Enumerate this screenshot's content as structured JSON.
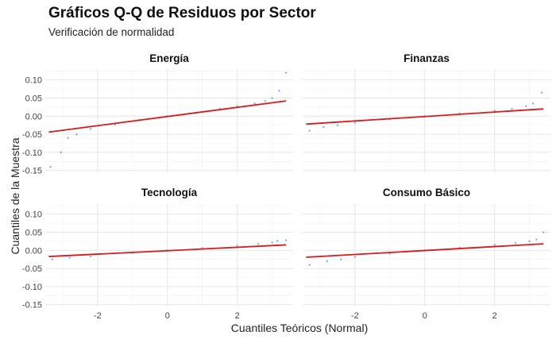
{
  "chart_data": {
    "type": "scatter",
    "title": "Gráficos Q-Q de Residuos por Sector",
    "subtitle": "Verificación de normalidad",
    "xlabel": "Cuantiles Teóricos (Normal)",
    "ylabel": "Cuantiles de la Muestra",
    "xlim": [
      -3.5,
      3.6
    ],
    "ylim": [
      -0.155,
      0.13
    ],
    "x_ticks": [
      -2,
      0,
      2
    ],
    "y_ticks": [
      0.1,
      0.05,
      0.0,
      -0.05,
      -0.1,
      -0.15
    ],
    "x_tick_labels": [
      "-2",
      "0",
      "2"
    ],
    "y_tick_labels": [
      "0.10",
      "0.05",
      "0.00",
      "-0.05",
      "-0.10",
      "-0.15"
    ],
    "grid": true,
    "point_color": "#6a8fc6",
    "line_color": "#d7191c",
    "panels": [
      {
        "name": "Energía",
        "points": [
          [
            -3.35,
            -0.14
          ],
          [
            -3.05,
            -0.1
          ],
          [
            -2.85,
            -0.06
          ],
          [
            -2.6,
            -0.05
          ],
          [
            -2.2,
            -0.035
          ],
          [
            -1.5,
            -0.023
          ],
          [
            -0.8,
            -0.011
          ],
          [
            0,
            0
          ],
          [
            0.8,
            0.009
          ],
          [
            1.5,
            0.02
          ],
          [
            2.0,
            0.027
          ],
          [
            2.5,
            0.035
          ],
          [
            2.8,
            0.042
          ],
          [
            3.0,
            0.05
          ],
          [
            3.2,
            0.07
          ],
          [
            3.4,
            0.12
          ]
        ],
        "line": [
          [
            -3.4,
            -0.044
          ],
          [
            3.4,
            0.042
          ]
        ]
      },
      {
        "name": "Finanzas",
        "points": [
          [
            -3.3,
            -0.04
          ],
          [
            -2.9,
            -0.03
          ],
          [
            -2.5,
            -0.025
          ],
          [
            -2.0,
            -0.018
          ],
          [
            -1.0,
            -0.008
          ],
          [
            0,
            0
          ],
          [
            1.0,
            0.007
          ],
          [
            2.0,
            0.015
          ],
          [
            2.5,
            0.02
          ],
          [
            2.9,
            0.028
          ],
          [
            3.1,
            0.035
          ],
          [
            3.35,
            0.065
          ]
        ],
        "line": [
          [
            -3.4,
            -0.022
          ],
          [
            3.4,
            0.02
          ]
        ]
      },
      {
        "name": "Tecnología",
        "points": [
          [
            -3.3,
            -0.025
          ],
          [
            -2.8,
            -0.02
          ],
          [
            -2.2,
            -0.017
          ],
          [
            -1.0,
            -0.007
          ],
          [
            0,
            0
          ],
          [
            1.0,
            0.006
          ],
          [
            2.0,
            0.012
          ],
          [
            2.6,
            0.018
          ],
          [
            3.0,
            0.022
          ],
          [
            3.15,
            0.026
          ],
          [
            3.4,
            0.028
          ]
        ],
        "line": [
          [
            -3.4,
            -0.017
          ],
          [
            3.4,
            0.015
          ]
        ]
      },
      {
        "name": "Consumo Básico",
        "points": [
          [
            -3.3,
            -0.04
          ],
          [
            -2.8,
            -0.03
          ],
          [
            -2.4,
            -0.025
          ],
          [
            -2.0,
            -0.018
          ],
          [
            -1.0,
            -0.009
          ],
          [
            0,
            0
          ],
          [
            1.0,
            0.007
          ],
          [
            2.0,
            0.015
          ],
          [
            2.6,
            0.02
          ],
          [
            3.0,
            0.025
          ],
          [
            3.2,
            0.03
          ],
          [
            3.4,
            0.05
          ]
        ],
        "line": [
          [
            -3.4,
            -0.019
          ],
          [
            3.4,
            0.018
          ]
        ]
      }
    ]
  }
}
